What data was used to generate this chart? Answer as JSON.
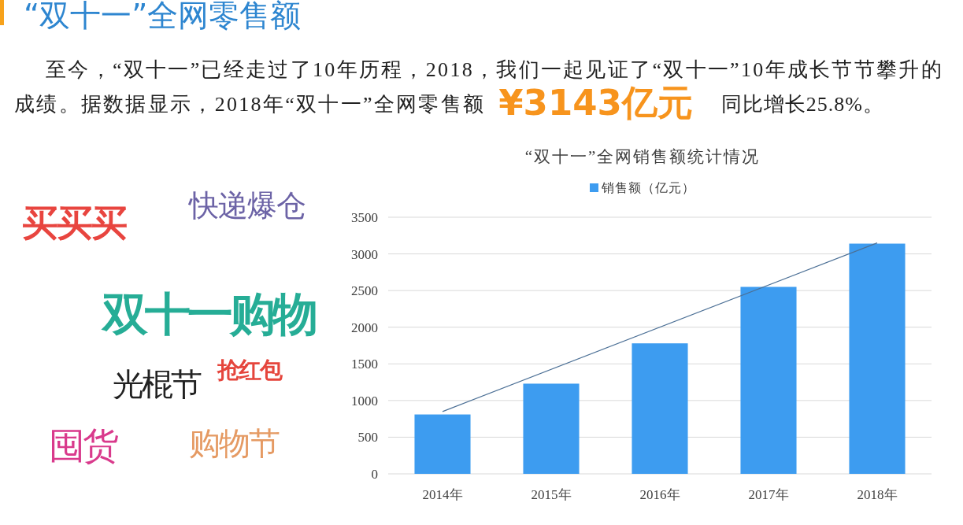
{
  "chart_data": [
    {
      "type": "other",
      "title": "“双十一”全网零售额",
      "annotations": [
        "至今，“双十一”已经走过了10年历程，2018，我们一起见证了“双十一”10年成长节节攀升的",
        "成绩。据数据显示，2018年“双十一”全网零售额",
        "¥3143亿元",
        "同比增长25.8%。",
        "买买买",
        "快递爆仓",
        "双十一购物",
        "抢红包",
        "光棍节",
        "囤货",
        "购物节"
      ]
    },
    {
      "type": "bar",
      "title": "“双十一”全网销售额统计情况",
      "categories": [
        "2014年",
        "2015年",
        "2016年",
        "2017年",
        "2018年"
      ],
      "series": [
        {
          "name": "销售额（亿元）",
          "color": "#3d9cf0",
          "values": [
            810,
            1230,
            1780,
            2550,
            3140
          ]
        },
        {
          "type": "line",
          "color": "#4c7096",
          "x": [
            "2014年",
            "2018年"
          ],
          "values": [
            850,
            3150
          ]
        }
      ],
      "ylim": [
        0,
        3500
      ],
      "yticks": [
        0,
        500,
        1000,
        1500,
        2000,
        2500,
        3000,
        3500
      ],
      "grid": "y",
      "legend": "top"
    }
  ]
}
